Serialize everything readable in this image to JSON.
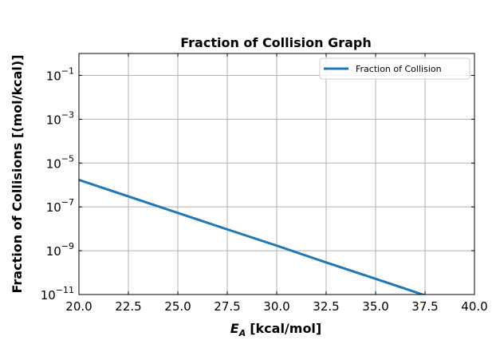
{
  "chart_data": {
    "type": "line",
    "title": "Fraction of Collision Graph",
    "xlabel_symbol": "E",
    "xlabel_subscript": "A",
    "xlabel_unit": "[kcal/mol]",
    "ylabel": "Fraction of Collisions [(mol/kcal)]",
    "xlim": [
      20.0,
      40.0
    ],
    "ylim_log10": [
      -11,
      0
    ],
    "yscale": "log",
    "x_ticks": [
      "20.0",
      "22.5",
      "25.0",
      "27.5",
      "30.0",
      "32.5",
      "35.0",
      "37.5",
      "40.0"
    ],
    "y_tick_exponents": [
      "-11",
      "-9",
      "-7",
      "-5",
      "-3",
      "-1"
    ],
    "y_tick_base": "10",
    "grid": true,
    "legend_position": "upper right",
    "series": [
      {
        "name": "Fraction of Collision",
        "color": "#1f77b4",
        "x": [
          20.0,
          22.5,
          25.0,
          27.5,
          30.0,
          32.5,
          35.0,
          37.5
        ],
        "y": [
          1.7e-06,
          3e-07,
          5.3e-08,
          9.4e-09,
          1.7e-09,
          2.9e-10,
          5.2e-11,
          9.2e-12
        ]
      }
    ]
  }
}
